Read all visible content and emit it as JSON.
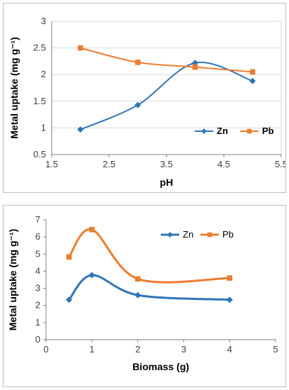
{
  "chart_data": [
    {
      "type": "line",
      "title": "",
      "xlabel": "pH",
      "ylabel": "Metal uptake (mg g⁻¹)",
      "xlim": [
        1.5,
        5.5
      ],
      "ylim": [
        0.5,
        3
      ],
      "xticks": [
        "1.5",
        "2.5",
        "3.5",
        "4.5",
        "5.5"
      ],
      "yticks": [
        "0.5",
        "1",
        "1.5",
        "2",
        "2.5",
        "3"
      ],
      "grid": true,
      "legend": "right",
      "x": [
        2,
        3,
        4,
        5
      ],
      "series": [
        {
          "name": "Zn",
          "values": [
            0.97,
            1.43,
            2.22,
            1.88
          ],
          "color": "#2e75b6",
          "marker": "diamond"
        },
        {
          "name": "Pb",
          "values": [
            2.5,
            2.23,
            2.14,
            2.05
          ],
          "color": "#ed7d31",
          "marker": "square"
        }
      ]
    },
    {
      "type": "line",
      "title": "",
      "xlabel": "Biomass (g)",
      "ylabel": "Metal uptake (mg g⁻¹)",
      "xlim": [
        0,
        5
      ],
      "ylim": [
        0,
        7
      ],
      "xticks": [
        "0",
        "1",
        "2",
        "3",
        "4",
        "5"
      ],
      "yticks": [
        "0",
        "1",
        "2",
        "3",
        "4",
        "5",
        "6",
        "7"
      ],
      "grid": false,
      "legend": "top",
      "x": [
        0.5,
        1,
        2,
        4
      ],
      "series": [
        {
          "name": "Zn",
          "values": [
            2.33,
            3.77,
            2.6,
            2.33
          ],
          "color": "#2e75b6",
          "marker": "diamond"
        },
        {
          "name": "Pb",
          "values": [
            4.83,
            6.43,
            3.55,
            3.6
          ],
          "color": "#ed7d31",
          "marker": "square"
        }
      ]
    }
  ]
}
